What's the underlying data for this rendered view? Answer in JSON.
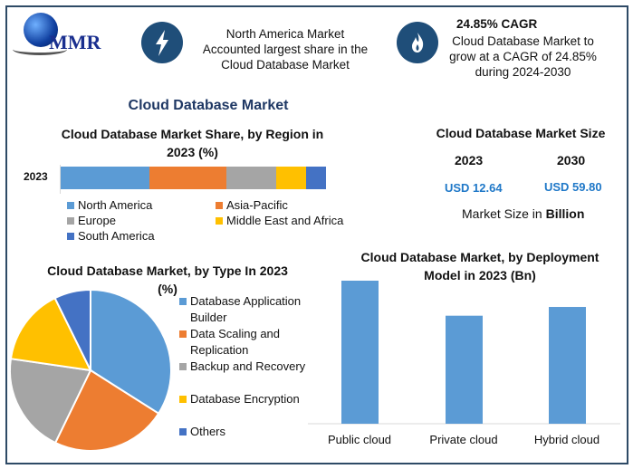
{
  "logo": {
    "text": "MMR"
  },
  "header": {
    "region_note": [
      "North America Market",
      "Accounted largest share in the",
      "Cloud Database Market"
    ],
    "cagr_title": "24.85% CAGR",
    "cagr_note": [
      "Cloud Database Market to",
      "grow at a CAGR of 24.85%",
      "during 2024-2030"
    ],
    "icons": [
      "lightning-bolt-icon",
      "flame-icon"
    ]
  },
  "main_title": "Cloud Database Market",
  "market_size": {
    "title": "Cloud Database Market Size",
    "years": [
      "2023",
      "2030"
    ],
    "values": [
      "USD 12.64",
      "USD 59.80"
    ],
    "note_prefix": "Market Size in ",
    "note_bold": "Billion",
    "value_color": "#1f78c8"
  },
  "chart_data": [
    {
      "type": "bar",
      "orientation": "horizontal-stacked",
      "title": "Cloud Database Market Share, by Region in 2023 (%)",
      "categories": [
        "2023"
      ],
      "series": [
        {
          "name": "North America",
          "values": [
            33.4
          ],
          "color": "#5b9bd5"
        },
        {
          "name": "Asia-Pacific",
          "values": [
            29.0
          ],
          "color": "#ed7d31"
        },
        {
          "name": "Europe",
          "values": [
            18.8
          ],
          "color": "#a5a5a5"
        },
        {
          "name": "Middle East and Africa",
          "values": [
            11.3
          ],
          "color": "#ffc000"
        },
        {
          "name": "South America",
          "values": [
            7.5
          ],
          "color": "#4472c4"
        }
      ],
      "legend": "bottom"
    },
    {
      "type": "pie",
      "title": "Cloud Database Market, by Type In 2023 (%)",
      "labels": [
        "Database Application Builder",
        "Data Scaling and Replication",
        "Backup and Recovery",
        "Database Encryption",
        "Others"
      ],
      "values": [
        34.0,
        23.2,
        20.1,
        15.4,
        7.3
      ],
      "colors": [
        "#5b9bd5",
        "#ed7d31",
        "#a5a5a5",
        "#ffc000",
        "#4472c4"
      ],
      "legend": "right"
    },
    {
      "type": "bar",
      "title": "Cloud Database Market, by Deployment Model in 2023 (Bn)",
      "categories": [
        "Public cloud",
        "Private cloud",
        "Hybrid cloud"
      ],
      "values": [
        4.9,
        3.7,
        4.0
      ],
      "color": "#5b9bd5",
      "grid": false
    }
  ]
}
